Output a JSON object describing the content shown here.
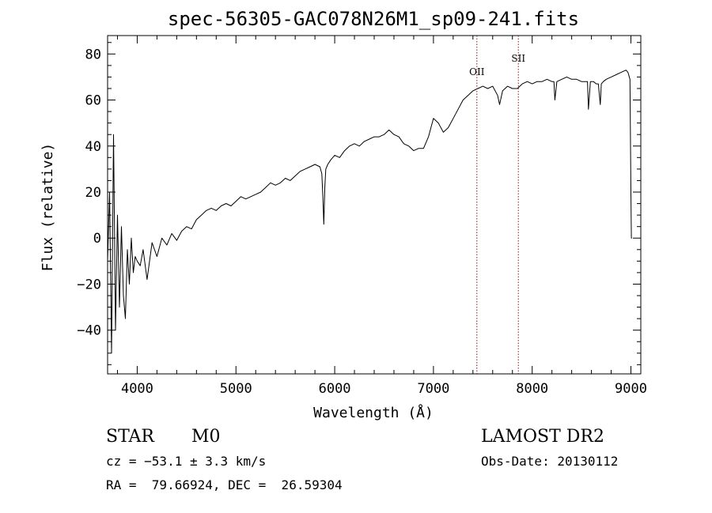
{
  "chart_data": {
    "type": "line",
    "title": "spec-56305-GAC078N26M1_sp09-241.fits",
    "xlabel": "Wavelength (Å)",
    "ylabel": "Flux (relative)",
    "xlim": [
      3700,
      9100
    ],
    "ylim": [
      -59,
      88
    ],
    "x_ticks": [
      4000,
      5000,
      6000,
      7000,
      8000,
      9000
    ],
    "y_ticks": [
      -40,
      -20,
      0,
      20,
      40,
      60,
      80
    ],
    "grid": false,
    "series": [
      {
        "x": [
          3700,
          3720,
          3740,
          3760,
          3780,
          3800,
          3820,
          3840,
          3860,
          3880,
          3900,
          3920,
          3940,
          3960,
          3980,
          4000,
          4030,
          4060,
          4100,
          4150,
          4200,
          4250,
          4300,
          4350,
          4400,
          4450,
          4500,
          4550,
          4600,
          4650,
          4700,
          4750,
          4800,
          4850,
          4900,
          4950,
          5000,
          5050,
          5100,
          5150,
          5200,
          5250,
          5300,
          5350,
          5400,
          5450,
          5500,
          5550,
          5600,
          5650,
          5700,
          5750,
          5800,
          5850,
          5870,
          5880,
          5890,
          5900,
          5910,
          5930,
          5960,
          6000,
          6050,
          6100,
          6150,
          6200,
          6250,
          6300,
          6350,
          6400,
          6450,
          6500,
          6550,
          6600,
          6650,
          6700,
          6750,
          6800,
          6850,
          6900,
          6950,
          7000,
          7050,
          7100,
          7150,
          7200,
          7250,
          7300,
          7350,
          7400,
          7450,
          7500,
          7550,
          7600,
          7650,
          7670,
          7700,
          7750,
          7800,
          7850,
          7900,
          7950,
          8000,
          8050,
          8100,
          8150,
          8200,
          8220,
          8230,
          8250,
          8300,
          8350,
          8400,
          8450,
          8500,
          8550,
          8560,
          8570,
          8590,
          8620,
          8650,
          8670,
          8690,
          8700,
          8720,
          8750,
          8800,
          8850,
          8900,
          8950,
          8970,
          8990,
          9000,
          9005,
          9010
        ],
        "y": [
          -10,
          20,
          -50,
          45,
          -40,
          10,
          -30,
          5,
          -25,
          -35,
          -5,
          -20,
          0,
          -15,
          -8,
          -10,
          -12,
          -5,
          -18,
          -2,
          -8,
          0,
          -3,
          2,
          -1,
          3,
          5,
          4,
          8,
          10,
          12,
          13,
          12,
          14,
          15,
          14,
          16,
          18,
          17,
          18,
          19,
          20,
          22,
          24,
          23,
          24,
          26,
          25,
          27,
          29,
          30,
          31,
          32,
          31,
          28,
          18,
          6,
          22,
          30,
          32,
          34,
          36,
          35,
          38,
          40,
          41,
          40,
          42,
          43,
          44,
          44,
          45,
          47,
          45,
          44,
          41,
          40,
          38,
          39,
          39,
          44,
          52,
          50,
          46,
          48,
          52,
          56,
          60,
          62,
          64,
          65,
          66,
          65,
          66,
          62,
          58,
          64,
          66,
          65,
          65,
          67,
          68,
          67,
          68,
          68,
          69,
          68,
          68,
          60,
          68,
          69,
          70,
          69,
          69,
          68,
          68,
          68,
          56,
          68,
          68,
          67,
          67,
          58,
          67,
          68,
          69,
          70,
          71,
          72,
          73,
          72,
          69,
          20,
          0,
          0
        ]
      }
    ],
    "annotations": [
      {
        "label": "OII",
        "x": 7440,
        "style": "dotted-vertical",
        "color": "#8b1a1a"
      },
      {
        "label": "SII",
        "x": 7860,
        "style": "dotted-vertical",
        "color": "#8b1a1a"
      }
    ],
    "line_color": "#000000"
  },
  "info": {
    "class_label": "STAR",
    "subclass": "M0",
    "redshift": "cz = −53.1 ± 3.3 km/s",
    "coords": "RA =  79.66924, DEC =  26.59304",
    "survey": "LAMOST DR2",
    "obs_date": "Obs-Date: 20130112"
  }
}
